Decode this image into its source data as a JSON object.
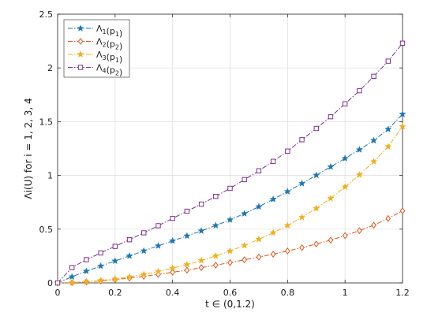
{
  "chart_data": {
    "type": "line",
    "xlabel": "t ∈ (0,1.2)",
    "ylabel": "Λi(U) for i = 1, 2, 3, 4",
    "xlim": [
      0,
      1.2
    ],
    "ylim": [
      0,
      2.5
    ],
    "xticks": [
      0,
      0.2,
      0.4,
      0.6,
      0.8,
      1,
      1.2
    ],
    "yticks": [
      0,
      0.5,
      1,
      1.5,
      2,
      2.5
    ],
    "xtick_labels": [
      "0",
      "0.2",
      "0.4",
      "0.6",
      "0.8",
      "1",
      "1.2"
    ],
    "ytick_labels": [
      "0",
      "0.5",
      "1",
      "1.5",
      "2",
      "2.5"
    ],
    "grid": true,
    "legend_position": "top-left",
    "x": [
      0,
      0.05,
      0.1,
      0.15,
      0.2,
      0.25,
      0.3,
      0.35,
      0.4,
      0.45,
      0.5,
      0.55,
      0.6,
      0.65,
      0.7,
      0.75,
      0.8,
      0.85,
      0.9,
      0.95,
      1.0,
      1.05,
      1.1,
      1.15,
      1.2
    ],
    "series": [
      {
        "name": "Λ1(p1)",
        "name_main": "Λ",
        "name_sub1": "1",
        "name_mid": "(p",
        "name_sub2": "1",
        "name_end": ")",
        "color": "#1f77b4",
        "marker": "star",
        "values": [
          0.0,
          0.057,
          0.109,
          0.157,
          0.204,
          0.251,
          0.298,
          0.345,
          0.391,
          0.437,
          0.484,
          0.534,
          0.587,
          0.645,
          0.709,
          0.778,
          0.85,
          0.925,
          1.002,
          1.08,
          1.158,
          1.239,
          1.325,
          1.43,
          1.57
        ]
      },
      {
        "name": "Λ2(p2)",
        "name_main": "Λ",
        "name_sub1": "2",
        "name_mid": "(p",
        "name_sub2": "2",
        "name_end": ")",
        "color": "#e1551a",
        "marker": "diamond",
        "values": [
          0.0,
          0.003,
          0.01,
          0.019,
          0.031,
          0.045,
          0.061,
          0.079,
          0.099,
          0.119,
          0.142,
          0.165,
          0.189,
          0.215,
          0.24,
          0.267,
          0.297,
          0.328,
          0.362,
          0.398,
          0.44,
          0.486,
          0.537,
          0.6,
          0.67
        ]
      },
      {
        "name": "Λ3(p1)",
        "name_main": "Λ",
        "name_sub1": "3",
        "name_mid": "(p",
        "name_sub2": "1",
        "name_end": ")",
        "color": "#f2b01e",
        "marker": "star",
        "values": [
          0.0,
          0.003,
          0.01,
          0.022,
          0.037,
          0.056,
          0.079,
          0.106,
          0.137,
          0.17,
          0.208,
          0.251,
          0.297,
          0.348,
          0.406,
          0.467,
          0.534,
          0.61,
          0.693,
          0.787,
          0.893,
          1.005,
          1.129,
          1.268,
          1.455
        ]
      },
      {
        "name": "Λ4(p2)",
        "name_main": "Λ",
        "name_sub1": "4",
        "name_mid": "(p",
        "name_sub2": "2",
        "name_end": ")",
        "color": "#7e2f8e",
        "marker": "square",
        "values": [
          0.0,
          0.143,
          0.216,
          0.279,
          0.34,
          0.402,
          0.466,
          0.532,
          0.6,
          0.667,
          0.733,
          0.805,
          0.88,
          0.961,
          1.043,
          1.131,
          1.226,
          1.332,
          1.437,
          1.546,
          1.666,
          1.788,
          1.922,
          2.063,
          2.23
        ]
      }
    ]
  }
}
